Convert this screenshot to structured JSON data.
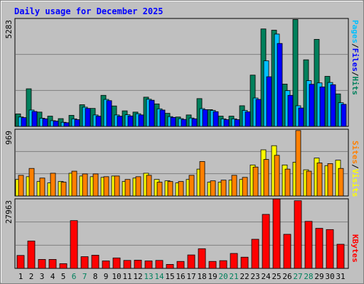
{
  "chart_data": [
    {
      "type": "bar",
      "title": "Daily usage for December 2025",
      "ymax_label": "5283",
      "ylim": [
        0,
        5283
      ],
      "legend_right": [
        "Pages",
        "Files",
        "Hits"
      ],
      "categories": [
        "1",
        "2",
        "3",
        "4",
        "5",
        "6",
        "7",
        "8",
        "9",
        "10",
        "11",
        "12",
        "13",
        "14",
        "15",
        "16",
        "17",
        "18",
        "19",
        "20",
        "21",
        "22",
        "23",
        "24",
        "25",
        "26",
        "27",
        "28",
        "29",
        "30",
        "31"
      ],
      "weekend_days": [
        "6",
        "7",
        "13",
        "14",
        "20",
        "21",
        "27",
        "28"
      ],
      "series": [
        {
          "name": "Hits",
          "color": "#00805c",
          "values": [
            610,
            1840,
            700,
            500,
            380,
            540,
            1060,
            880,
            1520,
            1000,
            760,
            700,
            1430,
            1100,
            640,
            460,
            560,
            1360,
            820,
            500,
            500,
            1010,
            2510,
            4770,
            4710,
            2070,
            5230,
            3260,
            4260,
            2450,
            1590
          ]
        },
        {
          "name": "Files",
          "color": "#00c0ff",
          "values": [
            460,
            800,
            400,
            280,
            200,
            370,
            940,
            560,
            1320,
            560,
            570,
            620,
            1330,
            860,
            480,
            380,
            410,
            870,
            780,
            370,
            370,
            780,
            1390,
            3210,
            4520,
            1750,
            1010,
            2240,
            2130,
            2150,
            1160
          ]
        },
        {
          "name": "Pages",
          "color": "#0000ff",
          "values": [
            430,
            730,
            370,
            260,
            180,
            330,
            880,
            500,
            1260,
            500,
            510,
            560,
            1280,
            800,
            440,
            340,
            370,
            820,
            720,
            330,
            330,
            710,
            1320,
            2430,
            4060,
            1520,
            900,
            2060,
            1930,
            2040,
            1080
          ]
        }
      ]
    },
    {
      "type": "bar",
      "ymax_label": "969",
      "ylim": [
        0,
        969
      ],
      "legend_right": [
        "Sites",
        "Visits"
      ],
      "series": [
        {
          "name": "Visits",
          "color": "#ffff00",
          "values": [
            240,
            280,
            210,
            190,
            210,
            330,
            290,
            280,
            270,
            290,
            210,
            260,
            330,
            240,
            220,
            190,
            240,
            390,
            200,
            200,
            230,
            240,
            450,
            670,
            730,
            450,
            490,
            380,
            550,
            440,
            520
          ]
        },
        {
          "name": "Sites",
          "color": "#ff8000",
          "values": [
            300,
            400,
            260,
            330,
            200,
            360,
            320,
            320,
            280,
            290,
            240,
            280,
            300,
            200,
            210,
            210,
            300,
            500,
            220,
            230,
            300,
            270,
            420,
            530,
            590,
            390,
            950,
            360,
            480,
            470,
            400
          ]
        }
      ]
    },
    {
      "type": "bar",
      "ymax_label": "27963",
      "ylim": [
        0,
        27963
      ],
      "legend_right": [
        "KBytes"
      ],
      "series": [
        {
          "name": "KBytes",
          "color": "#ff0000",
          "values": [
            5200,
            11000,
            3600,
            3600,
            1900,
            19200,
            4700,
            5300,
            3000,
            4200,
            3200,
            3300,
            3000,
            3200,
            1600,
            2800,
            5400,
            7900,
            2800,
            3100,
            6000,
            4500,
            11700,
            21700,
            27900,
            13700,
            27200,
            18900,
            16100,
            15600,
            9700
          ]
        }
      ]
    }
  ]
}
